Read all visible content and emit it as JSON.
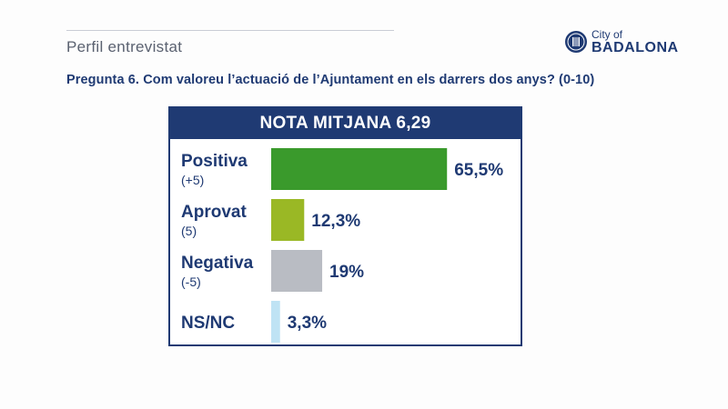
{
  "header": {
    "section_title": "Perfil entrevistat",
    "logo": {
      "small": "City of",
      "big": "BADALONA"
    }
  },
  "question": "Pregunta 6. Com valoreu l’actuació de l’Ajuntament en els darrers dos anys? (0-10)",
  "chart_data": {
    "type": "bar",
    "title": "NOTA MITJANA 6,29",
    "categories": [
      "Positiva",
      "Aprovat",
      "Negativa",
      "NS/NC"
    ],
    "sublabels": [
      "(+5)",
      "(5)",
      "(-5)",
      ""
    ],
    "values": [
      65.5,
      12.3,
      19,
      3.3
    ],
    "value_labels": [
      "65,5%",
      "12,3%",
      "19%",
      "3,3%"
    ],
    "colors": [
      "#3a9a2c",
      "#9ab825",
      "#b9bcc3",
      "#bfe3f4"
    ],
    "ylim": [
      0,
      100
    ],
    "grid": false,
    "legend": "none"
  },
  "colors": {
    "accent": "#1f3a73"
  }
}
